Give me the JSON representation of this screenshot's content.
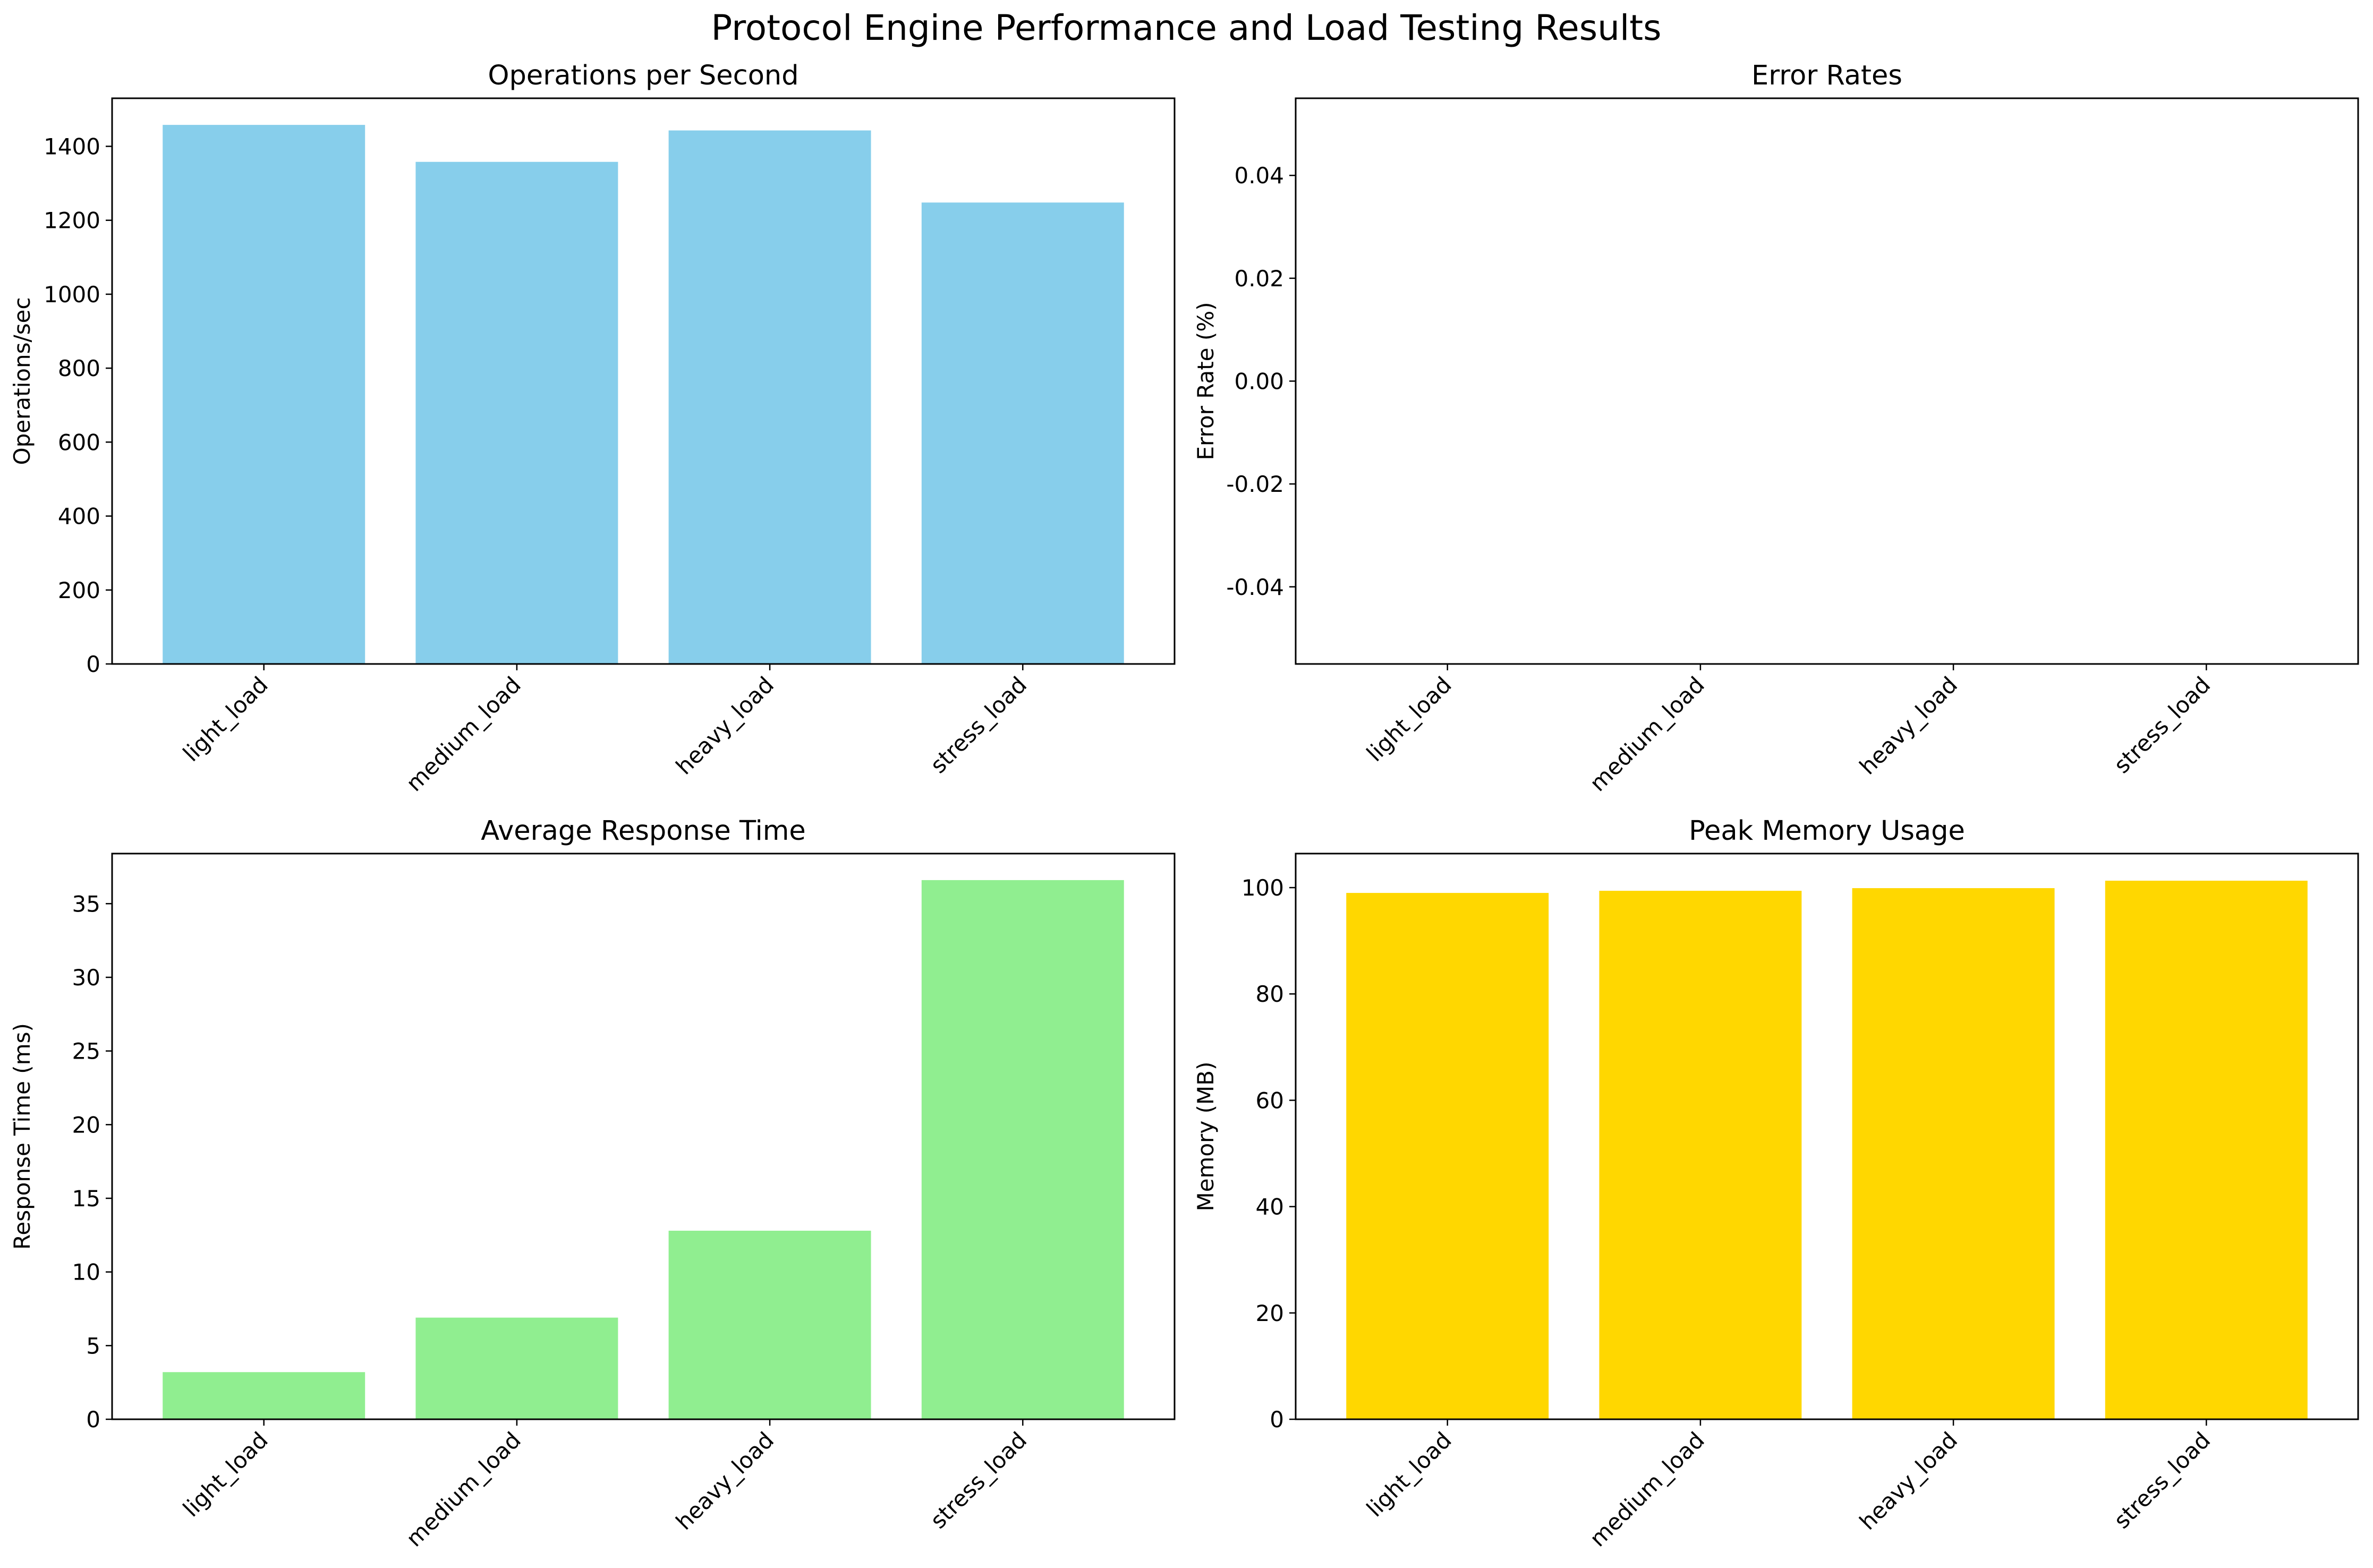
{
  "figure": {
    "title": "Protocol Engine Performance and Load Testing Results"
  },
  "chart_data": [
    {
      "type": "bar",
      "title": "Operations per Second",
      "xlabel": "",
      "ylabel": "Operations/sec",
      "categories": [
        "light_load",
        "medium_load",
        "heavy_load",
        "stress_load"
      ],
      "values": [
        1458,
        1358,
        1443,
        1248
      ],
      "ylim": [
        0,
        1530
      ],
      "yticks": [
        0,
        200,
        400,
        600,
        800,
        1000,
        1200,
        1400
      ],
      "ytick_labels": [
        "0",
        "200",
        "400",
        "600",
        "800",
        "1000",
        "1200",
        "1400"
      ],
      "color": "#87CEEB",
      "grid": false
    },
    {
      "type": "bar",
      "title": "Error Rates",
      "xlabel": "",
      "ylabel": "Error Rate (%)",
      "categories": [
        "light_load",
        "medium_load",
        "heavy_load",
        "stress_load"
      ],
      "values": [
        0,
        0,
        0,
        0
      ],
      "ylim": [
        -0.055,
        0.055
      ],
      "yticks": [
        -0.04,
        -0.02,
        0,
        0.02,
        0.04
      ],
      "ytick_labels": [
        "-0.04",
        "-0.02",
        "0.00",
        "0.02",
        "0.04"
      ],
      "color": "#FF7F7F",
      "grid": false
    },
    {
      "type": "bar",
      "title": "Average Response Time",
      "xlabel": "",
      "ylabel": "Response Time (ms)",
      "categories": [
        "light_load",
        "medium_load",
        "heavy_load",
        "stress_load"
      ],
      "values": [
        3.2,
        6.9,
        12.8,
        36.6
      ],
      "ylim": [
        0,
        38.4
      ],
      "yticks": [
        0,
        5,
        10,
        15,
        20,
        25,
        30,
        35
      ],
      "ytick_labels": [
        "0",
        "5",
        "10",
        "15",
        "20",
        "25",
        "30",
        "35"
      ],
      "color": "#90EE90",
      "grid": false
    },
    {
      "type": "bar",
      "title": "Peak Memory Usage",
      "xlabel": "",
      "ylabel": "Memory (MB)",
      "categories": [
        "light_load",
        "medium_load",
        "heavy_load",
        "stress_load"
      ],
      "values": [
        99.0,
        99.4,
        99.9,
        101.3
      ],
      "ylim": [
        0,
        106.4
      ],
      "yticks": [
        0,
        20,
        40,
        60,
        80,
        100
      ],
      "ytick_labels": [
        "0",
        "20",
        "40",
        "60",
        "80",
        "100"
      ],
      "color": "#FFD700",
      "grid": false
    }
  ]
}
